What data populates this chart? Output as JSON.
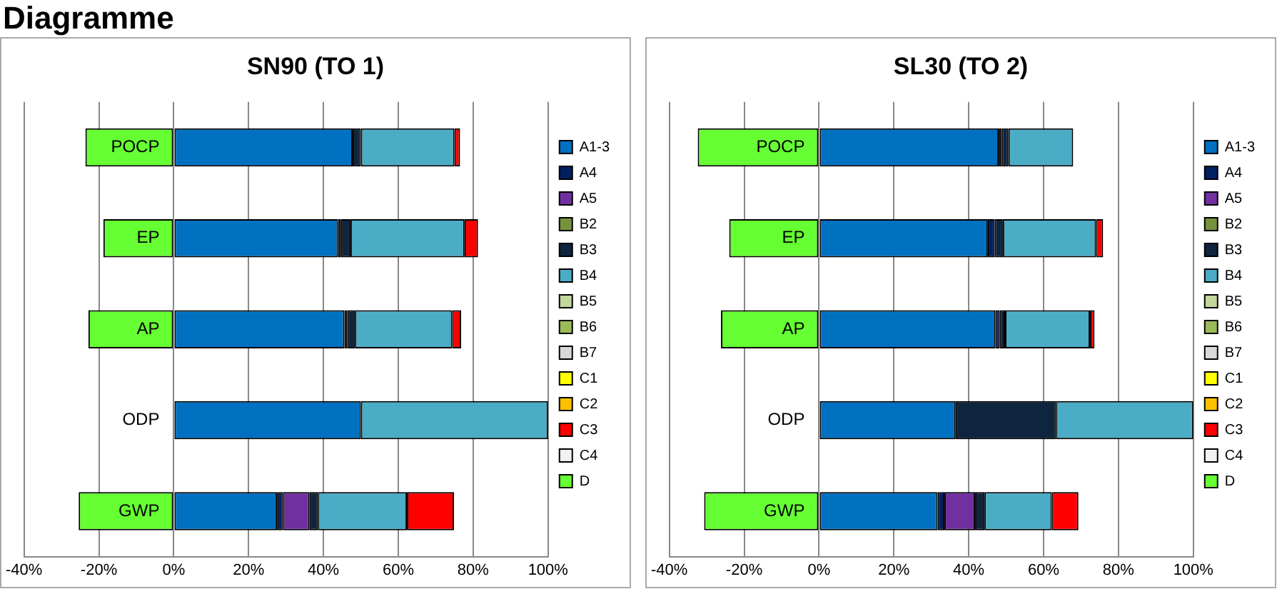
{
  "chart_data": [
    {
      "type": "bar",
      "orientation": "horizontal",
      "stacked": true,
      "title": "SN90 (TO 1)",
      "annotations": [
        "Diagramme"
      ],
      "categories": [
        "POCP",
        "EP",
        "AP",
        "ODP",
        "GWP"
      ],
      "xlim": [
        -40,
        100
      ],
      "xticks": [
        {
          "value": -40,
          "label": "-40%"
        },
        {
          "value": -20,
          "label": "-20%"
        },
        {
          "value": 0,
          "label": "0%"
        },
        {
          "value": 20,
          "label": "20%"
        },
        {
          "value": 40,
          "label": "40%"
        },
        {
          "value": 60,
          "label": "60%"
        },
        {
          "value": 80,
          "label": "80%"
        },
        {
          "value": 100,
          "label": "100%"
        }
      ],
      "grid": "x",
      "legend": "right",
      "series": [
        {
          "name": "A1-3",
          "color": "#0070c0",
          "values": [
            47.8,
            43.9,
            45.6,
            50,
            27.6
          ]
        },
        {
          "name": "A4",
          "color": "#002060",
          "values": [
            0,
            0.8,
            0.8,
            0,
            1.6
          ]
        },
        {
          "name": "A5",
          "color": "#7030a0",
          "values": [
            0,
            0,
            0,
            0,
            7.1
          ]
        },
        {
          "name": "B2",
          "color": "#76923c",
          "values": [
            0,
            0,
            0,
            0,
            0
          ]
        },
        {
          "name": "B3",
          "color": "#0f243e",
          "values": [
            2.2,
            2.5,
            2.0,
            0,
            2.2
          ]
        },
        {
          "name": "B4",
          "color": "#4bacc6",
          "values": [
            25,
            30.5,
            26,
            50,
            23.8
          ]
        },
        {
          "name": "B5",
          "color": "#c4d79b",
          "values": [
            0,
            0,
            0,
            0,
            0
          ]
        },
        {
          "name": "B6",
          "color": "#9bbb59",
          "values": [
            0,
            0,
            0,
            0,
            0
          ]
        },
        {
          "name": "B7",
          "color": "#d9d9d9",
          "values": [
            0,
            0,
            0,
            0,
            0
          ]
        },
        {
          "name": "C1",
          "color": "#ffff00",
          "values": [
            0,
            0,
            0,
            0,
            0
          ]
        },
        {
          "name": "C2",
          "color": "#ffc000",
          "values": [
            0,
            0,
            0,
            0,
            0
          ]
        },
        {
          "name": "C3",
          "color": "#ff0000",
          "values": [
            1.5,
            3.6,
            2.4,
            0,
            12.6
          ]
        },
        {
          "name": "C4",
          "color": "#f2f2f2",
          "values": [
            0,
            0,
            0,
            0,
            0
          ]
        },
        {
          "name": "D",
          "color": "#66ff33",
          "values": [
            -23.6,
            -18.8,
            -22.8,
            0,
            -25.4
          ]
        }
      ]
    },
    {
      "type": "bar",
      "orientation": "horizontal",
      "stacked": true,
      "title": "SL30 (TO 2)",
      "categories": [
        "POCP",
        "EP",
        "AP",
        "ODP",
        "GWP"
      ],
      "xlim": [
        -40,
        100
      ],
      "xticks": [
        {
          "value": -40,
          "label": "-40%"
        },
        {
          "value": -20,
          "label": "-20%"
        },
        {
          "value": 0,
          "label": "0%"
        },
        {
          "value": 20,
          "label": "20%"
        },
        {
          "value": 40,
          "label": "40%"
        },
        {
          "value": 60,
          "label": "60%"
        },
        {
          "value": 80,
          "label": "80%"
        },
        {
          "value": 100,
          "label": "100%"
        }
      ],
      "grid": "x",
      "legend": "right",
      "series": [
        {
          "name": "A1-3",
          "color": "#0070c0",
          "values": [
            48.0,
            45.1,
            47.1,
            36.5,
            31.7
          ]
        },
        {
          "name": "A4",
          "color": "#002060",
          "values": [
            0.8,
            1.8,
            1.2,
            0,
            1.8
          ]
        },
        {
          "name": "A5",
          "color": "#7030a0",
          "values": [
            0,
            0,
            0,
            0,
            8.2
          ]
        },
        {
          "name": "B2",
          "color": "#76923c",
          "values": [
            0,
            0,
            0,
            0,
            0
          ]
        },
        {
          "name": "B3",
          "color": "#0f243e",
          "values": [
            1.8,
            2.2,
            1.4,
            26.8,
            2.5
          ]
        },
        {
          "name": "B4",
          "color": "#4bacc6",
          "values": [
            17.3,
            24.9,
            22.7,
            36.7,
            18.0
          ]
        },
        {
          "name": "B5",
          "color": "#c4d79b",
          "values": [
            0,
            0,
            0,
            0,
            0
          ]
        },
        {
          "name": "B6",
          "color": "#9bbb59",
          "values": [
            0,
            0,
            0,
            0,
            0
          ]
        },
        {
          "name": "B7",
          "color": "#d9d9d9",
          "values": [
            0,
            0,
            0,
            0,
            0
          ]
        },
        {
          "name": "C1",
          "color": "#ffff00",
          "values": [
            0,
            0,
            0,
            0,
            0
          ]
        },
        {
          "name": "C2",
          "color": "#ffc000",
          "values": [
            0,
            0,
            0,
            0,
            0
          ]
        },
        {
          "name": "C3",
          "color": "#ff0000",
          "values": [
            0,
            1.9,
            1.2,
            0,
            7.1
          ]
        },
        {
          "name": "C4",
          "color": "#f2f2f2",
          "values": [
            0,
            0,
            0,
            0,
            0
          ]
        },
        {
          "name": "D",
          "color": "#66ff33",
          "values": [
            -32.4,
            -24.0,
            -26.2,
            0,
            -30.7
          ]
        }
      ]
    }
  ]
}
